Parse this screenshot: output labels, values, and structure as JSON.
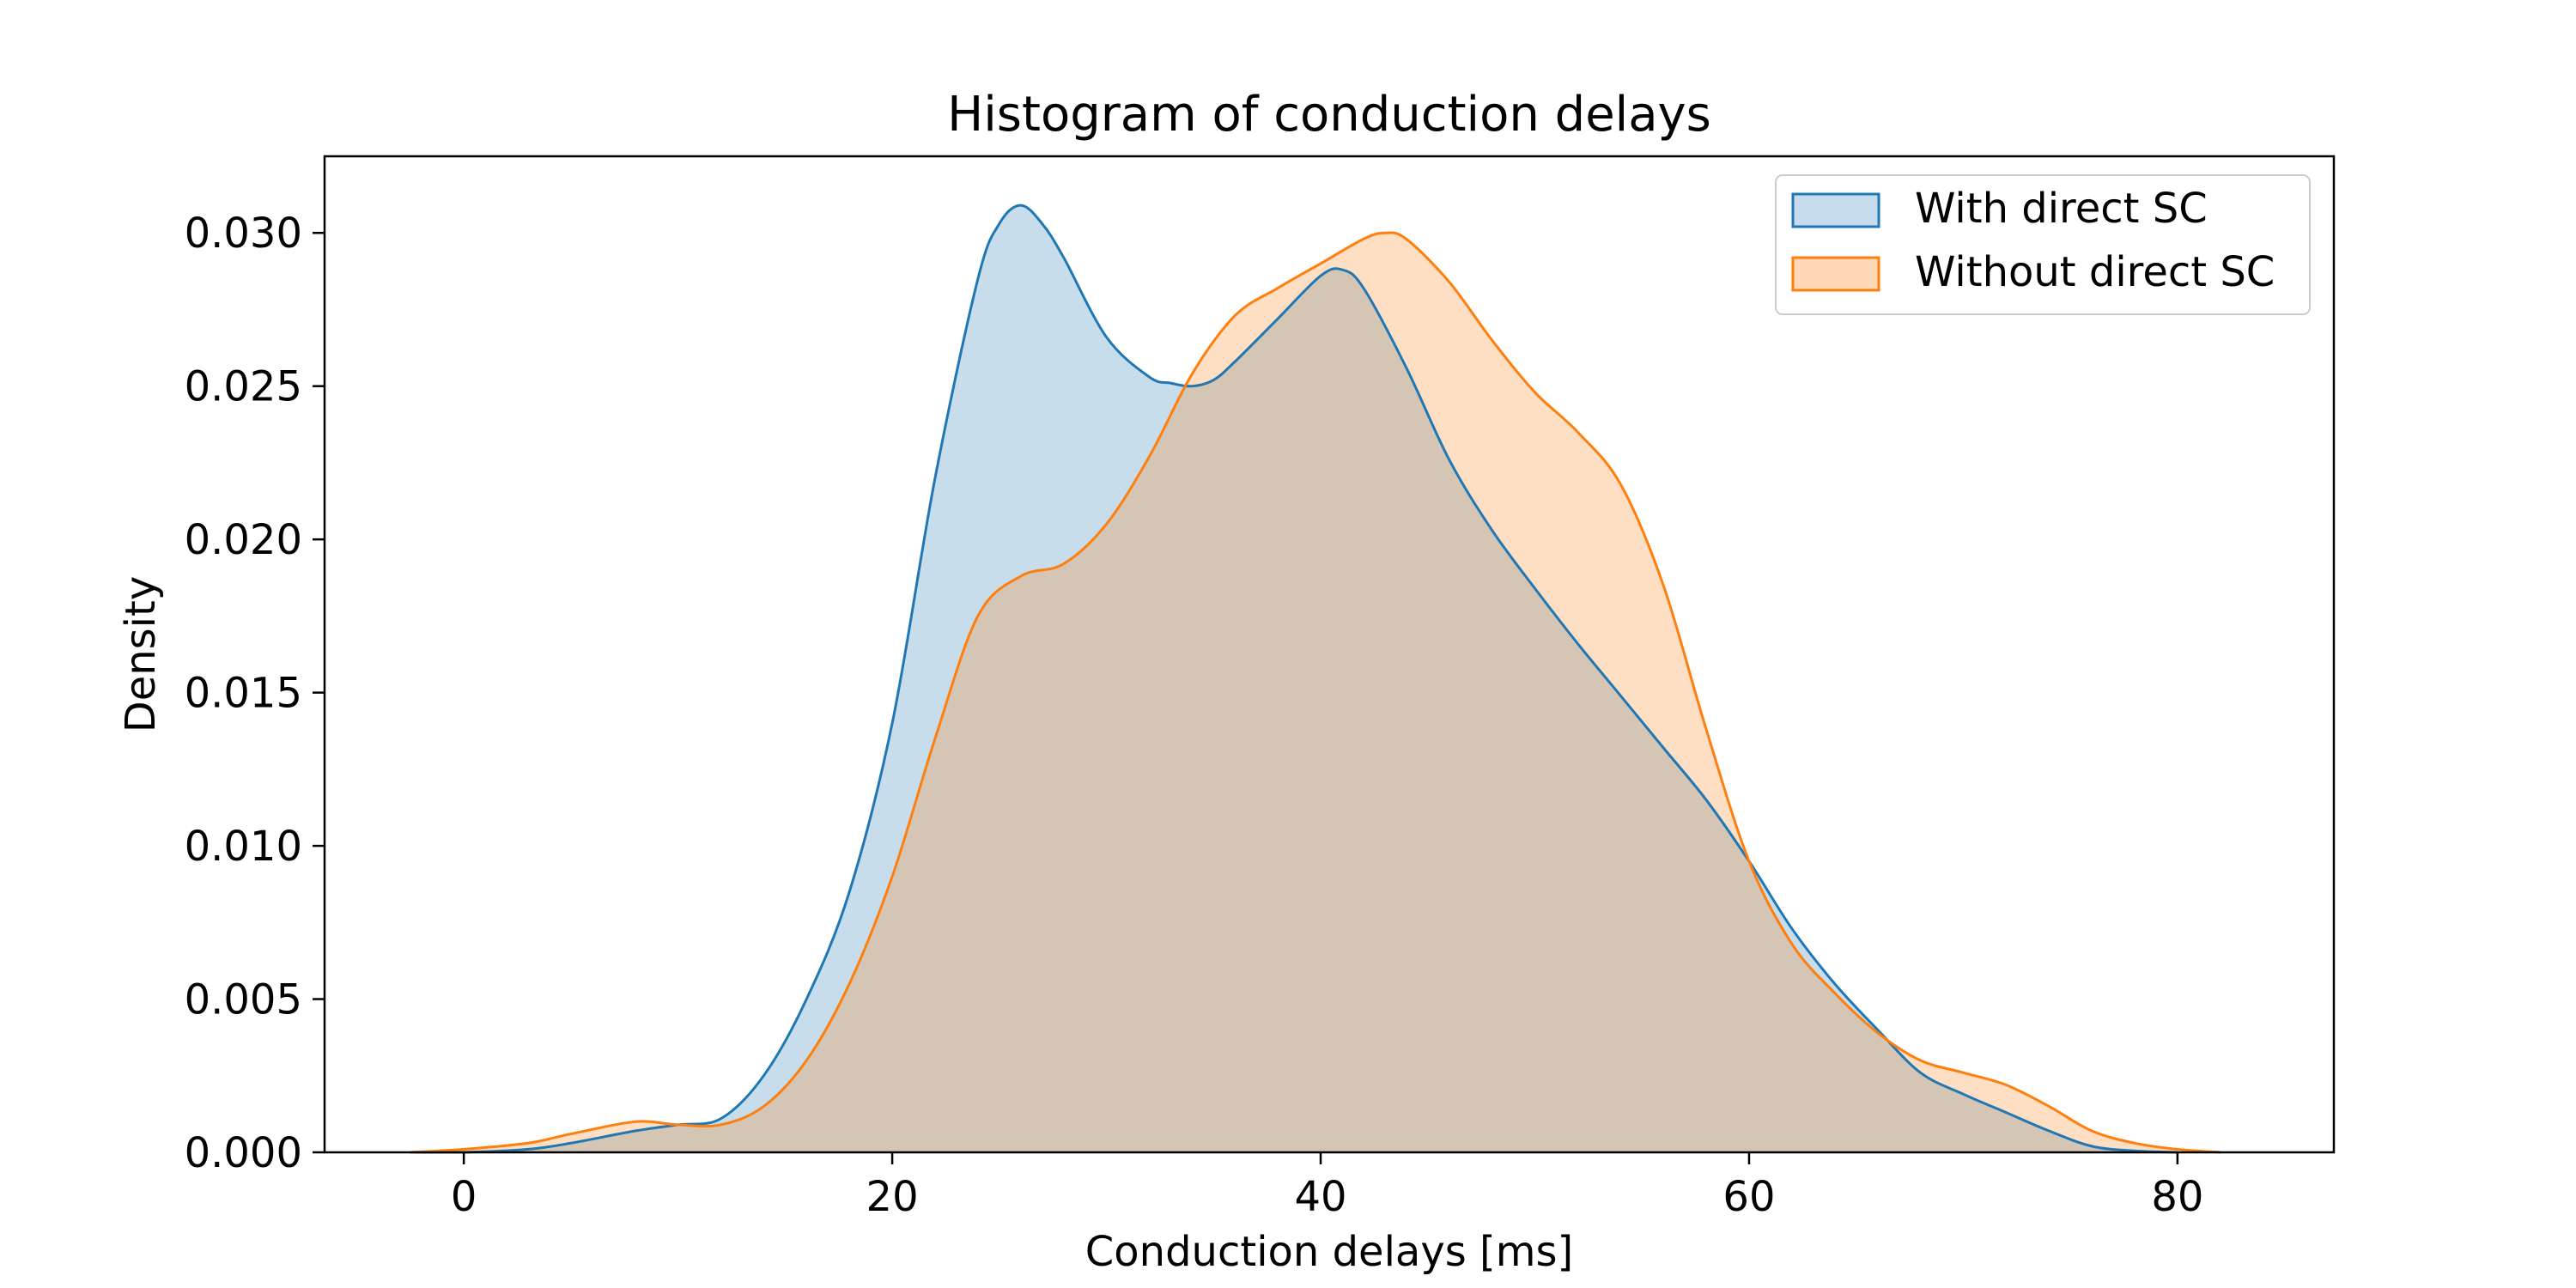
{
  "chart_data": {
    "type": "area",
    "title": "Histogram of conduction delays",
    "xlabel": "Conduction delays [ms]",
    "ylabel": "Density",
    "xlim": [
      -6.5,
      87.3
    ],
    "ylim": [
      0,
      0.0325
    ],
    "xticks": [
      0,
      20,
      40,
      60,
      80
    ],
    "xtick_labels": [
      "0",
      "20",
      "40",
      "60",
      "80"
    ],
    "yticks": [
      0.0,
      0.005,
      0.01,
      0.015,
      0.02,
      0.025,
      0.03
    ],
    "ytick_labels": [
      "0.000",
      "0.005",
      "0.010",
      "0.015",
      "0.020",
      "0.025",
      "0.030"
    ],
    "grid": false,
    "legend_position": "top-right",
    "series": [
      {
        "name": "With direct SC",
        "color": "#1f77b4",
        "fill_color": "#c6dcec",
        "x": [
          -2.5,
          0,
          3,
          5,
          8,
          10,
          12,
          14,
          16,
          18,
          20,
          22,
          24,
          25,
          26,
          27,
          28,
          30,
          32,
          33,
          34,
          35,
          36,
          38,
          40,
          41,
          42,
          44,
          46,
          48,
          50,
          52,
          54,
          56,
          58,
          60,
          62,
          64,
          66,
          68,
          70,
          72,
          74,
          76,
          78,
          80
        ],
        "y": [
          0.0,
          0.0,
          0.0001,
          0.0003,
          0.0007,
          0.0009,
          0.0011,
          0.0025,
          0.005,
          0.0085,
          0.014,
          0.022,
          0.0285,
          0.0303,
          0.0309,
          0.0303,
          0.0292,
          0.0266,
          0.0253,
          0.0251,
          0.025,
          0.0252,
          0.0258,
          0.0272,
          0.0286,
          0.0288,
          0.0282,
          0.0256,
          0.0226,
          0.0203,
          0.0184,
          0.0166,
          0.0149,
          0.0132,
          0.0115,
          0.0095,
          0.0073,
          0.0055,
          0.004,
          0.0026,
          0.0019,
          0.0013,
          0.0007,
          0.0002,
          5e-05,
          0.0
        ]
      },
      {
        "name": "Without direct SC",
        "color": "#ff7f0e",
        "fill_color": "#ffd9b7",
        "x": [
          -2.5,
          0,
          3,
          5,
          8,
          10,
          12,
          14,
          16,
          18,
          20,
          22,
          24,
          26,
          28,
          30,
          32,
          34,
          36,
          38,
          40,
          42,
          43,
          44,
          46,
          48,
          50,
          52,
          54,
          56,
          58,
          60,
          62,
          64,
          66,
          68,
          70,
          72,
          74,
          76,
          78,
          80,
          82
        ],
        "y": [
          0.0,
          0.0001,
          0.0003,
          0.0006,
          0.001,
          0.0009,
          0.0009,
          0.0015,
          0.003,
          0.0055,
          0.009,
          0.0135,
          0.0175,
          0.0188,
          0.0192,
          0.0205,
          0.0227,
          0.0254,
          0.0273,
          0.0282,
          0.029,
          0.0298,
          0.03,
          0.0298,
          0.0284,
          0.0265,
          0.0248,
          0.0235,
          0.0218,
          0.0185,
          0.0138,
          0.0095,
          0.0068,
          0.0052,
          0.0039,
          0.003,
          0.0026,
          0.0022,
          0.0015,
          0.0007,
          0.0003,
          0.0001,
          0.0
        ]
      }
    ]
  }
}
